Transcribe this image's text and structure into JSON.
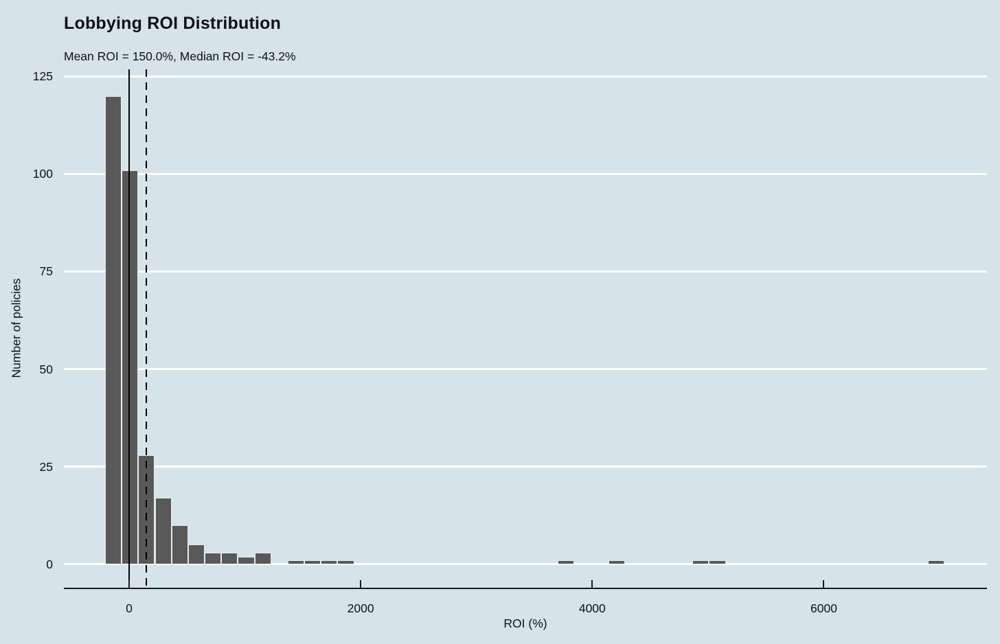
{
  "page": {
    "background": "#d6e3ea"
  },
  "chart_data": {
    "type": "bar",
    "variant": "histogram",
    "title": "Lobbying ROI Distribution",
    "subtitle": "Mean ROI = 150.0%, Median ROI = -43.2%",
    "xlabel": "ROI (%)",
    "ylabel": "Number of policies",
    "x_ticks": [
      0,
      2000,
      4000,
      6000
    ],
    "y_ticks": [
      0,
      25,
      50,
      75,
      100,
      125
    ],
    "xlim": [
      -563.5,
      7409
    ],
    "ylim": [
      -6,
      126.8
    ],
    "grid": "horizontal-major-only",
    "legend": "none",
    "bin_width": 143,
    "bars": [
      {
        "x": -208,
        "count": 120
      },
      {
        "x": -64,
        "count": 101
      },
      {
        "x": 79,
        "count": 28
      },
      {
        "x": 223,
        "count": 17
      },
      {
        "x": 366,
        "count": 10
      },
      {
        "x": 509,
        "count": 5
      },
      {
        "x": 653,
        "count": 3
      },
      {
        "x": 796,
        "count": 3
      },
      {
        "x": 940,
        "count": 2
      },
      {
        "x": 1083,
        "count": 3
      },
      {
        "x": 1370,
        "count": 1
      },
      {
        "x": 1513,
        "count": 1
      },
      {
        "x": 1657,
        "count": 1
      },
      {
        "x": 1800,
        "count": 1
      },
      {
        "x": 3703,
        "count": 1
      },
      {
        "x": 4142,
        "count": 1
      },
      {
        "x": 4866,
        "count": 1
      },
      {
        "x": 5009,
        "count": 1
      },
      {
        "x": 6896,
        "count": 1
      }
    ],
    "reference_lines": [
      {
        "x": 0,
        "style": "solid",
        "meaning": "zero-roi-line"
      },
      {
        "x": 150,
        "style": "dashed",
        "meaning": "mean-roi-line"
      }
    ],
    "colors": {
      "background": "#d6e3ea",
      "bar_fill": "#595959",
      "bar_border": "#e6edf1",
      "gridline": "#ffffff",
      "axis": "#1a1a1a",
      "text": "#111111"
    }
  }
}
